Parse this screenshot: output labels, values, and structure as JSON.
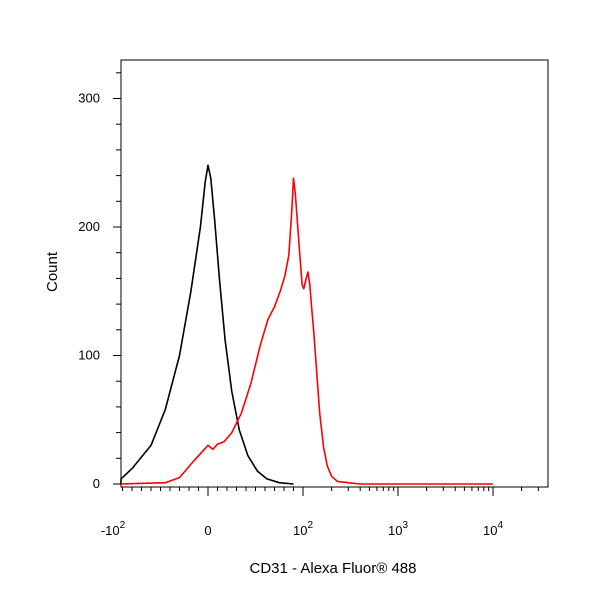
{
  "chart_data": {
    "type": "line",
    "title": "",
    "xlabel": "CD31 - Alexa Fluor® 488",
    "ylabel": "Count",
    "x_scale": "biexponential",
    "x_ticks": [
      {
        "value": -100,
        "base": "-10",
        "exp": "2"
      },
      {
        "value": 0,
        "base": "0",
        "exp": ""
      },
      {
        "value": 100,
        "base": "10",
        "exp": "2"
      },
      {
        "value": 1000,
        "base": "10",
        "exp": "3"
      },
      {
        "value": 10000,
        "base": "10",
        "exp": "4"
      }
    ],
    "y_ticks": [
      0,
      100,
      200,
      300
    ],
    "ylim": [
      0,
      330
    ],
    "grid": false,
    "legend": "none",
    "series": [
      {
        "color": "#000000",
        "points": [
          [
            -300,
            0
          ],
          [
            -150,
            1
          ],
          [
            -110,
            4
          ],
          [
            -80,
            12
          ],
          [
            -60,
            30
          ],
          [
            -45,
            58
          ],
          [
            -30,
            100
          ],
          [
            -18,
            150
          ],
          [
            -8,
            200
          ],
          [
            -3,
            235
          ],
          [
            0,
            248
          ],
          [
            3,
            238
          ],
          [
            7,
            205
          ],
          [
            12,
            160
          ],
          [
            18,
            112
          ],
          [
            25,
            72
          ],
          [
            33,
            42
          ],
          [
            42,
            22
          ],
          [
            52,
            10
          ],
          [
            62,
            4
          ],
          [
            75,
            1
          ],
          [
            90,
            0
          ]
        ]
      },
      {
        "color": "#ff0000",
        "points": [
          [
            -150,
            0
          ],
          [
            -45,
            1
          ],
          [
            -30,
            5
          ],
          [
            -15,
            18
          ],
          [
            -5,
            26
          ],
          [
            0,
            30
          ],
          [
            5,
            27
          ],
          [
            10,
            31
          ],
          [
            17,
            33
          ],
          [
            25,
            40
          ],
          [
            35,
            55
          ],
          [
            45,
            78
          ],
          [
            55,
            108
          ],
          [
            63,
            128
          ],
          [
            70,
            138
          ],
          [
            76,
            150
          ],
          [
            81,
            162
          ],
          [
            85,
            178
          ],
          [
            88,
            210
          ],
          [
            90,
            238
          ],
          [
            92,
            225
          ],
          [
            96,
            185
          ],
          [
            99,
            155
          ],
          [
            102,
            152
          ],
          [
            108,
            160
          ],
          [
            113,
            165
          ],
          [
            118,
            155
          ],
          [
            124,
            135
          ],
          [
            130,
            118
          ],
          [
            140,
            85
          ],
          [
            150,
            55
          ],
          [
            165,
            28
          ],
          [
            180,
            14
          ],
          [
            200,
            6
          ],
          [
            230,
            2
          ],
          [
            300,
            1
          ],
          [
            400,
            0
          ],
          [
            10000,
            0
          ]
        ]
      }
    ]
  }
}
